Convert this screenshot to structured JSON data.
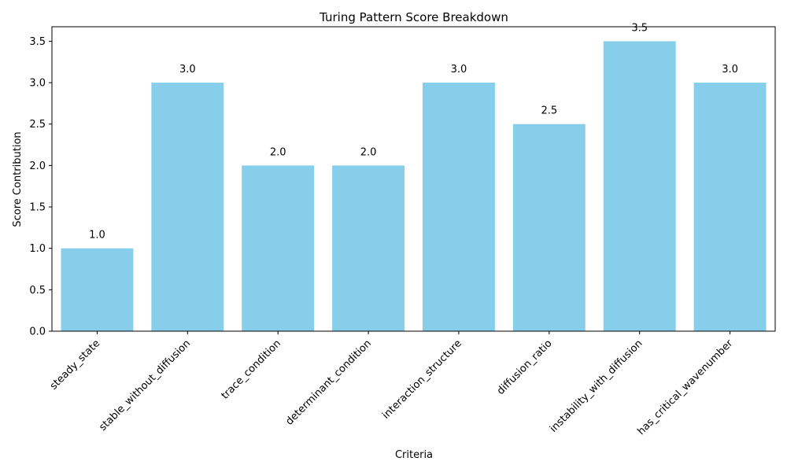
{
  "chart_data": {
    "type": "bar",
    "title": "Turing Pattern Score Breakdown",
    "xlabel": "Criteria",
    "ylabel": "Score Contribution",
    "categories": [
      "steady_state",
      "stable_without_diffusion",
      "trace_condition",
      "determinant_condition",
      "interaction_structure",
      "diffusion_ratio",
      "instability_with_diffusion",
      "has_critical_wavenumber"
    ],
    "values": [
      1.0,
      3.0,
      2.0,
      2.0,
      3.0,
      2.5,
      3.5,
      3.0
    ],
    "data_labels": [
      "1.0",
      "3.0",
      "2.0",
      "2.0",
      "3.0",
      "2.5",
      "3.5",
      "3.0"
    ],
    "yticks": [
      0.0,
      0.5,
      1.0,
      1.5,
      2.0,
      2.5,
      3.0,
      3.5
    ],
    "ytick_labels": [
      "0.0",
      "0.5",
      "1.0",
      "1.5",
      "2.0",
      "2.5",
      "3.0",
      "3.5"
    ],
    "ylim": [
      0,
      3.675
    ],
    "grid": false,
    "bar_color": "#87CEEB"
  }
}
